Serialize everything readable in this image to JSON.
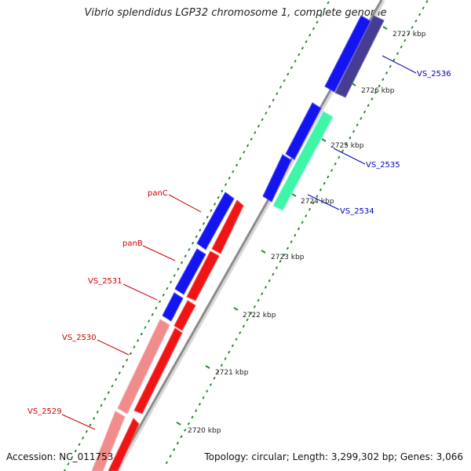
{
  "title": "Vibrio splendidus LGP32 chromosome 1, complete genome",
  "accession": "Accession: NC_011753",
  "summary": "Topology: circular; Length: 3,299,302 bp; Genes: 3,066",
  "colors": {
    "forward_gene": "#1414f0",
    "reverse_gene": "#f01414",
    "reverse_gene_light": "#f08c8c",
    "teal_gene": "#3ff5a8",
    "purple_gene": "#463c94",
    "axis": "#999999",
    "tick": "#2a8a2a",
    "label_forward": "#0000bb",
    "label_reverse": "#cc0000"
  },
  "ticks": [
    {
      "label": "2720 kbp"
    },
    {
      "label": "2721 kbp"
    },
    {
      "label": "2722 kbp"
    },
    {
      "label": "2723 kbp"
    },
    {
      "label": "2724 kbp"
    },
    {
      "label": "2725 kbp"
    },
    {
      "label": "2726 kbp"
    },
    {
      "label": "2727 kbp"
    }
  ],
  "genes": [
    {
      "name": "panC"
    },
    {
      "name": "panB"
    },
    {
      "name": "VS_2531"
    },
    {
      "name": "VS_2530"
    },
    {
      "name": "VS_2529"
    },
    {
      "name": "VS_2534"
    },
    {
      "name": "VS_2535"
    },
    {
      "name": "VS_2536"
    }
  ]
}
